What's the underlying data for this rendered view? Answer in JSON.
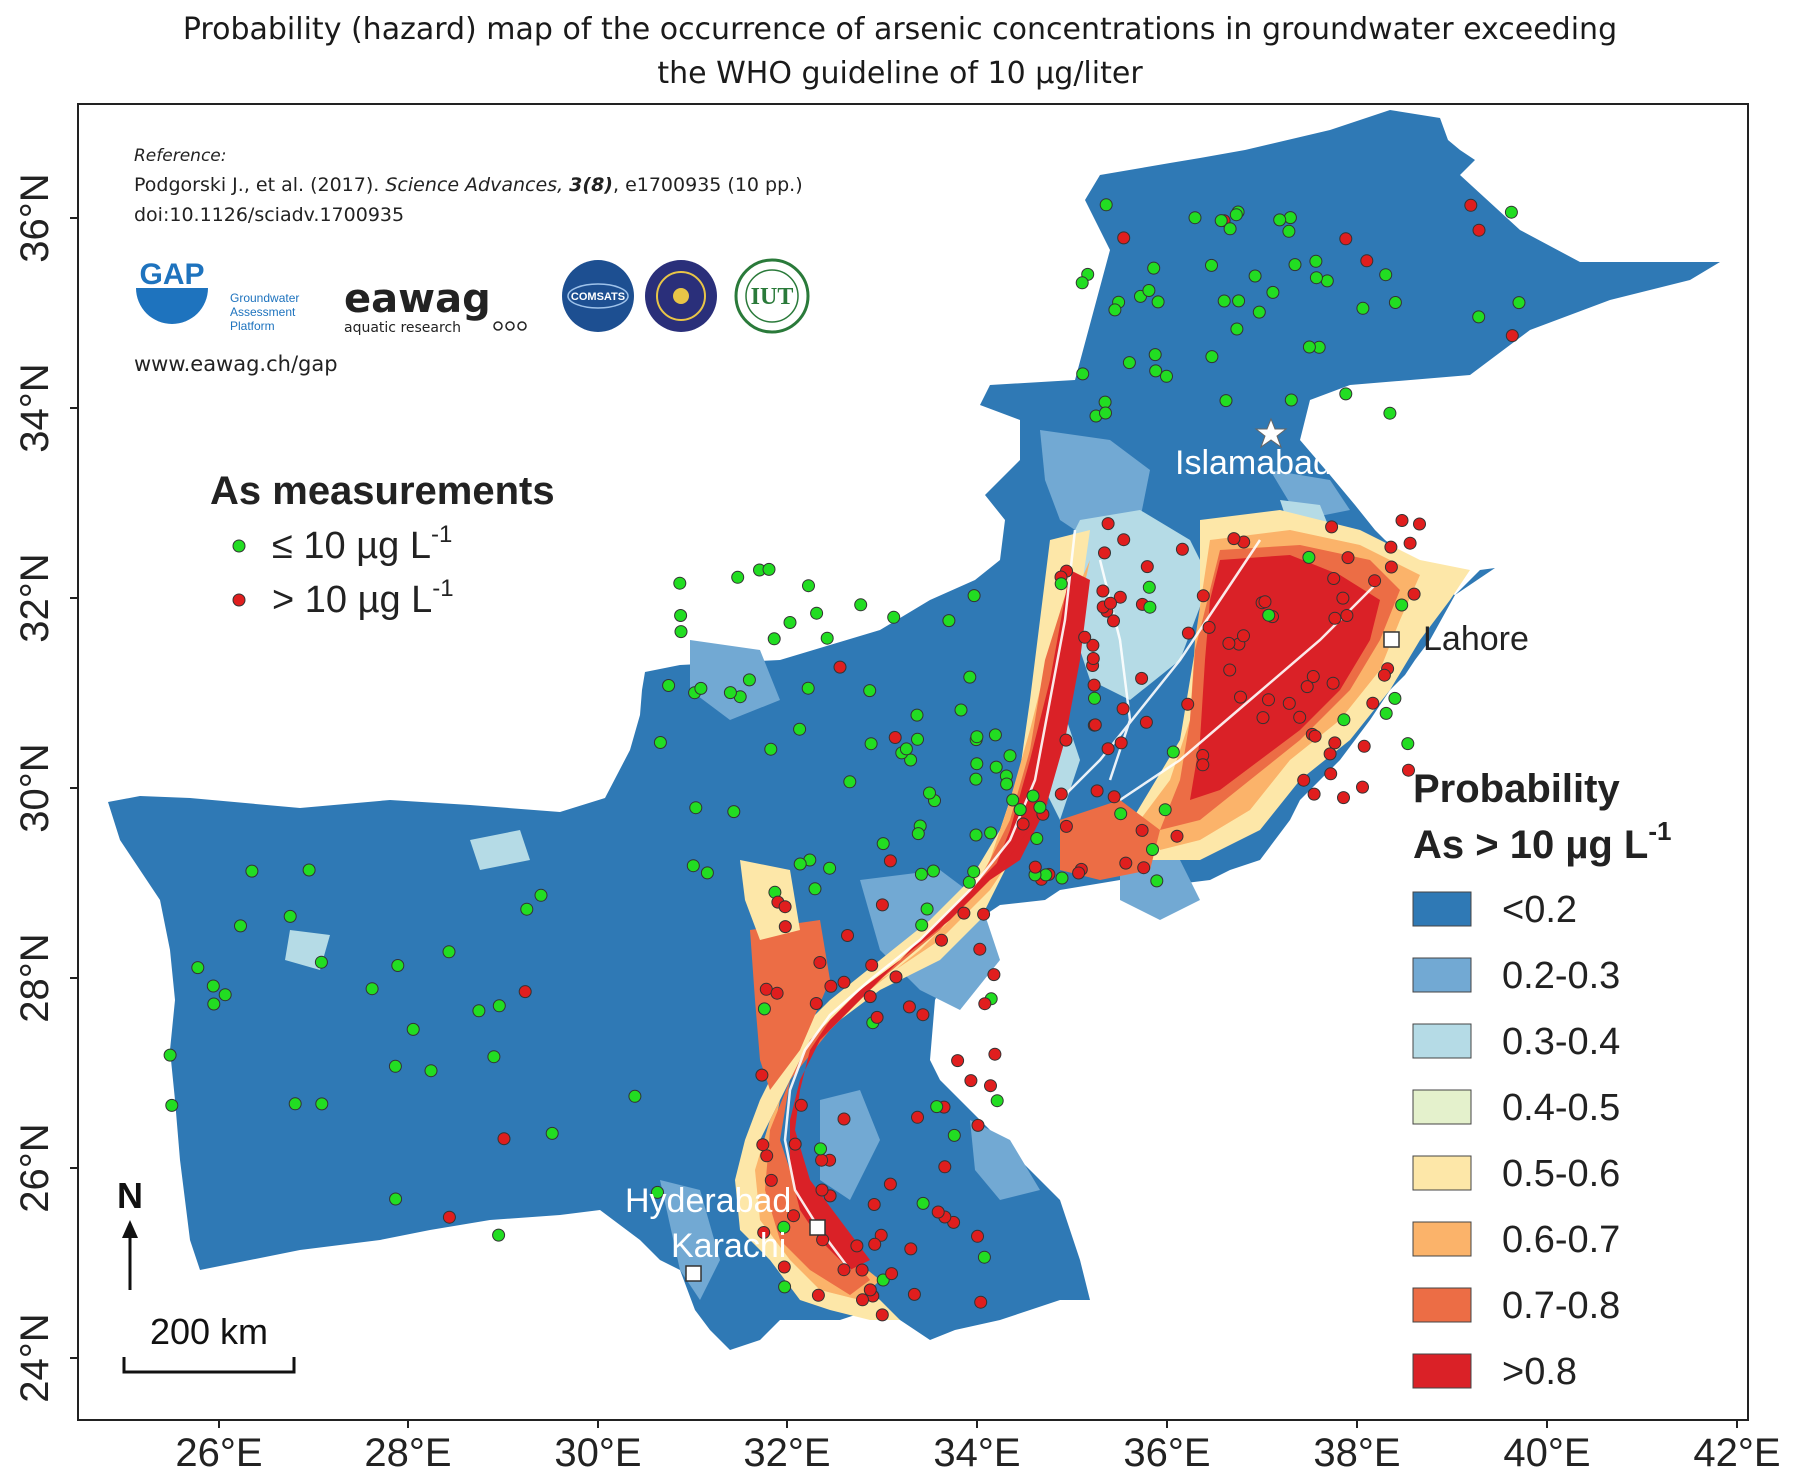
{
  "title": {
    "line1": "Probability (hazard) map of the occurrence of arsenic concentrations in groundwater exceeding",
    "line2": "the WHO guideline of 10 µg/liter"
  },
  "reference": {
    "label": "Reference:",
    "citation_authors": "Podgorski J., et al. (2017).",
    "citation_journal": "Science Advances,",
    "citation_volume": "3(8)",
    "citation_pages": ", e1700935 (10 pp.)",
    "doi": "doi:10.1126/sciadv.1700935",
    "url": "www.eawag.ch/gap"
  },
  "logos": {
    "gap": {
      "letters": "GAP",
      "line1": "Groundwater",
      "line2": "Assessment",
      "line3": "Platform"
    },
    "eawag": {
      "name": "eawag",
      "tagline": "aquatic research"
    },
    "comsats": {
      "text": "COMSATS"
    },
    "iut": {
      "text": "IUT"
    }
  },
  "measurements_legend": {
    "title": "As measurements",
    "low": "≤ 10 µg L",
    "low_sup": "-1",
    "high": "> 10 µg L",
    "high_sup": "-1",
    "low_color": "#22dd22",
    "high_color": "#e01e1e"
  },
  "probability_legend": {
    "title1": "Probability",
    "title2": "As > 10 µg L",
    "title2_sup": "-1",
    "classes": [
      {
        "label": "<0.2",
        "color": "#2f79b5"
      },
      {
        "label": "0.2-0.3",
        "color": "#72a9d3"
      },
      {
        "label": "0.3-0.4",
        "color": "#b5dbe6"
      },
      {
        "label": "0.4-0.5",
        "color": "#e4f1cc"
      },
      {
        "label": "0.5-0.6",
        "color": "#fde7a8"
      },
      {
        "label": "0.6-0.7",
        "color": "#fbb36a"
      },
      {
        "label": "0.7-0.8",
        "color": "#ec6d45"
      },
      {
        "label": ">0.8",
        "color": "#da2127"
      }
    ]
  },
  "cities": [
    {
      "name": "Islamabad",
      "symbol": "star"
    },
    {
      "name": "Lahore",
      "symbol": "square"
    },
    {
      "name": "Hyderabad",
      "symbol": "square"
    },
    {
      "name": "Karachi",
      "symbol": "square"
    }
  ],
  "north_arrow": "N",
  "scale_bar": "200 km",
  "axes": {
    "x_ticks": [
      "26°E",
      "28°E",
      "30°E",
      "32°E",
      "34°E",
      "36°E",
      "38°E",
      "40°E",
      "42°E"
    ],
    "y_ticks": [
      "24°N",
      "26°N",
      "28°N",
      "30°N",
      "32°N",
      "34°N",
      "36°N"
    ]
  }
}
